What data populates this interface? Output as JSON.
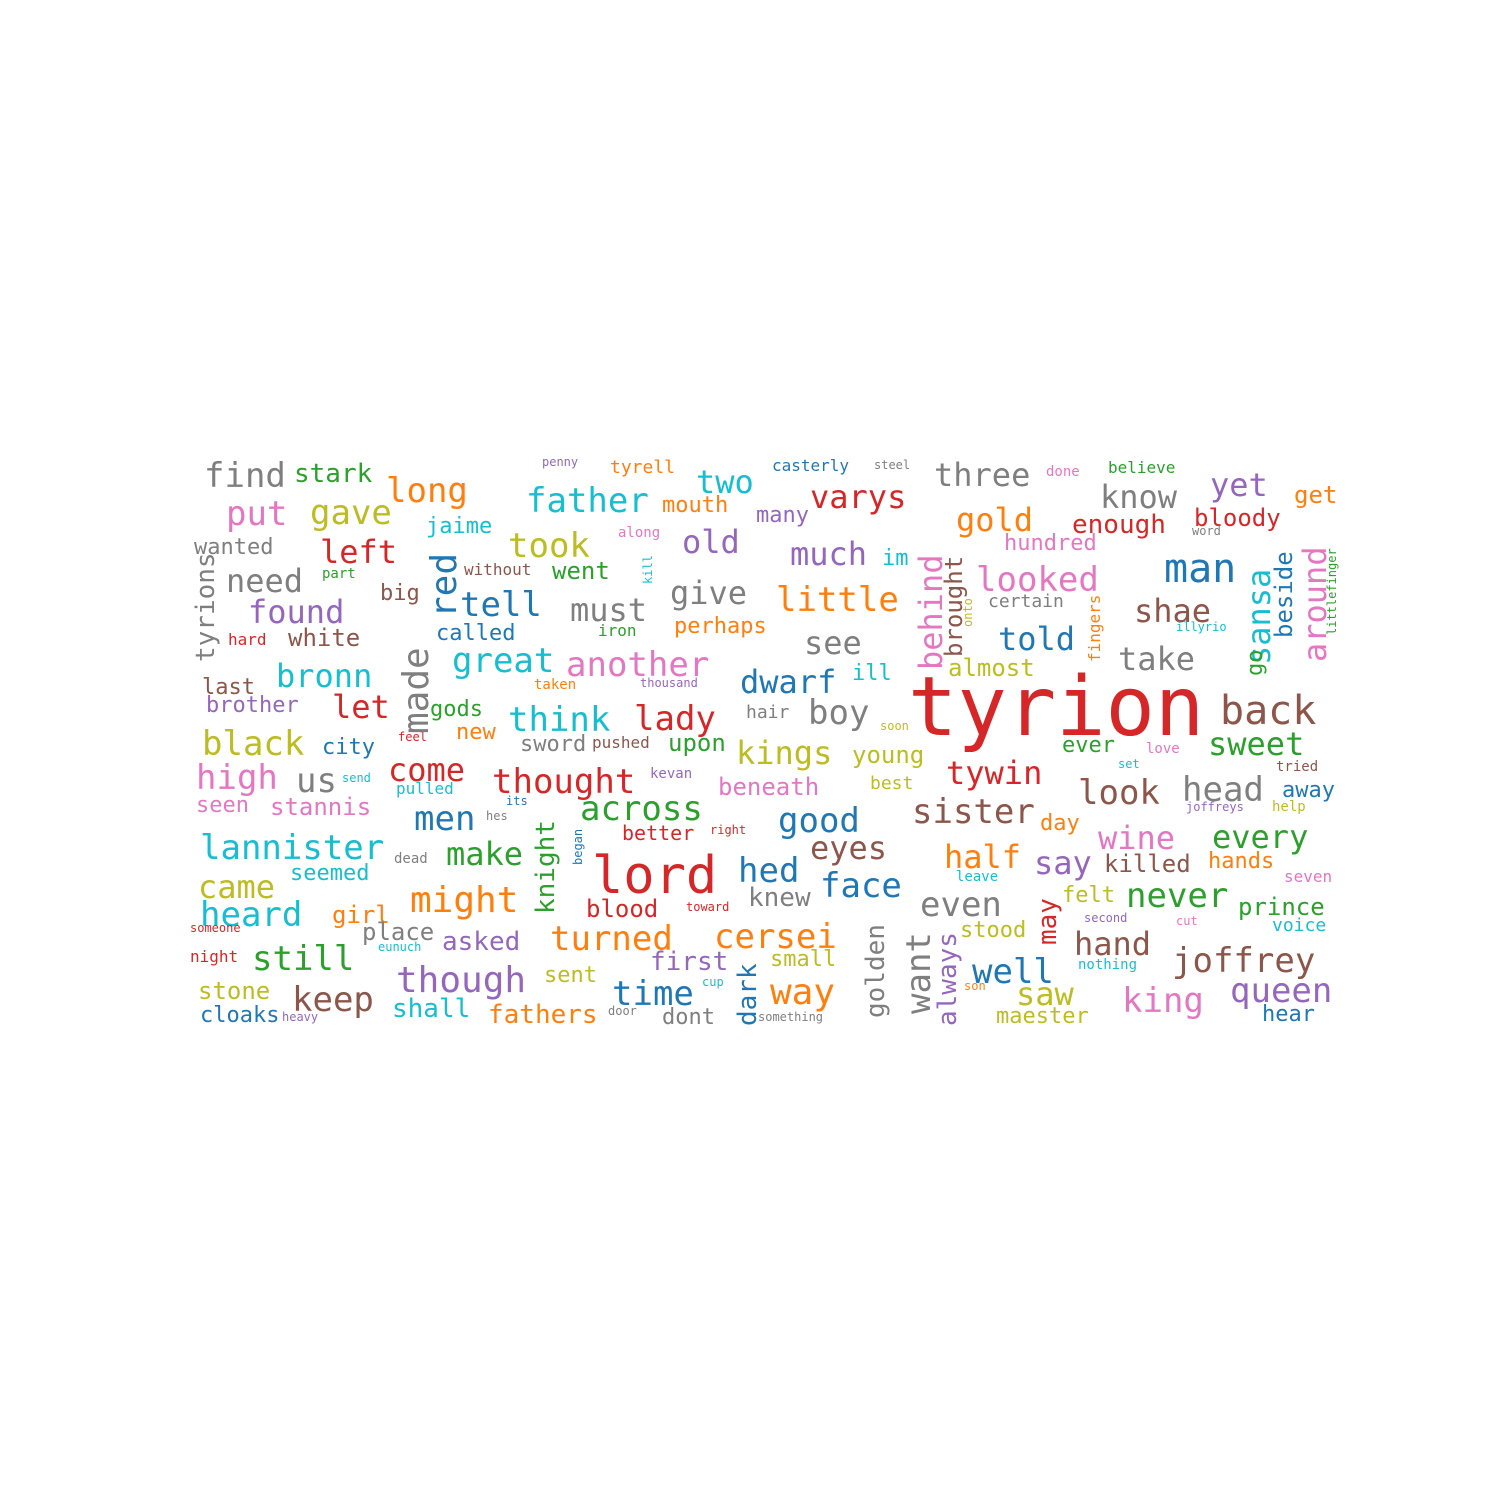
{
  "palette": [
    "#d62728",
    "#1f77b4",
    "#2ca02c",
    "#ff7f0e",
    "#9467bd",
    "#8c564b",
    "#e377c2",
    "#7f7f7f",
    "#bcbd22",
    "#17becf"
  ],
  "words": [
    {
      "text": "tyrion",
      "color": "#d62728"
    },
    {
      "text": "lord",
      "color": "#d62728"
    },
    {
      "text": "back",
      "color": "#8c564b"
    },
    {
      "text": "sweet",
      "color": "#2ca02c"
    },
    {
      "text": "joffrey",
      "color": "#8c564b"
    },
    {
      "text": "queen",
      "color": "#9467bd"
    },
    {
      "text": "king",
      "color": "#e377c2"
    },
    {
      "text": "hand",
      "color": "#8c564b"
    },
    {
      "text": "never",
      "color": "#2ca02c"
    },
    {
      "text": "every",
      "color": "#2ca02c"
    },
    {
      "text": "wine",
      "color": "#e377c2"
    },
    {
      "text": "head",
      "color": "#7f7f7f"
    },
    {
      "text": "look",
      "color": "#8c564b"
    },
    {
      "text": "take",
      "color": "#7f7f7f"
    },
    {
      "text": "shae",
      "color": "#8c564b"
    },
    {
      "text": "man",
      "color": "#1f77b4"
    },
    {
      "text": "know",
      "color": "#7f7f7f"
    },
    {
      "text": "yet",
      "color": "#9467bd"
    },
    {
      "text": "three",
      "color": "#7f7f7f"
    },
    {
      "text": "gold",
      "color": "#ff7f0e"
    },
    {
      "text": "varys",
      "color": "#d62728"
    },
    {
      "text": "two",
      "color": "#17becf"
    },
    {
      "text": "father",
      "color": "#17becf"
    },
    {
      "text": "long",
      "color": "#ff7f0e"
    },
    {
      "text": "find",
      "color": "#7f7f7f"
    },
    {
      "text": "stark",
      "color": "#2ca02c"
    },
    {
      "text": "put",
      "color": "#e377c2"
    },
    {
      "text": "gave",
      "color": "#bcbd22"
    },
    {
      "text": "took",
      "color": "#bcbd22"
    },
    {
      "text": "old",
      "color": "#9467bd"
    },
    {
      "text": "much",
      "color": "#9467bd"
    },
    {
      "text": "looked",
      "color": "#e377c2"
    },
    {
      "text": "enough",
      "color": "#d62728"
    },
    {
      "text": "bloody",
      "color": "#d62728"
    },
    {
      "text": "get",
      "color": "#ff7f0e"
    },
    {
      "text": "left",
      "color": "#d62728"
    },
    {
      "text": "need",
      "color": "#7f7f7f"
    },
    {
      "text": "found",
      "color": "#9467bd"
    },
    {
      "text": "tell",
      "color": "#1f77b4"
    },
    {
      "text": "must",
      "color": "#7f7f7f"
    },
    {
      "text": "give",
      "color": "#7f7f7f"
    },
    {
      "text": "little",
      "color": "#ff7f0e"
    },
    {
      "text": "told",
      "color": "#1f77b4"
    },
    {
      "text": "great",
      "color": "#17becf"
    },
    {
      "text": "another",
      "color": "#e377c2"
    },
    {
      "text": "see",
      "color": "#7f7f7f"
    },
    {
      "text": "bronn",
      "color": "#17becf"
    },
    {
      "text": "dwarf",
      "color": "#1f77b4"
    },
    {
      "text": "boy",
      "color": "#7f7f7f"
    },
    {
      "text": "think",
      "color": "#17becf"
    },
    {
      "text": "lady",
      "color": "#d62728"
    },
    {
      "text": "let",
      "color": "#d62728"
    },
    {
      "text": "black",
      "color": "#bcbd22"
    },
    {
      "text": "kings",
      "color": "#bcbd22"
    },
    {
      "text": "high",
      "color": "#e377c2"
    },
    {
      "text": "us",
      "color": "#7f7f7f"
    },
    {
      "text": "come",
      "color": "#d62728"
    },
    {
      "text": "thought",
      "color": "#d62728"
    },
    {
      "text": "tywin",
      "color": "#d62728"
    },
    {
      "text": "across",
      "color": "#2ca02c"
    },
    {
      "text": "good",
      "color": "#1f77b4"
    },
    {
      "text": "sister",
      "color": "#8c564b"
    },
    {
      "text": "men",
      "color": "#1f77b4"
    },
    {
      "text": "lannister",
      "color": "#17becf"
    },
    {
      "text": "make",
      "color": "#2ca02c"
    },
    {
      "text": "eyes",
      "color": "#8c564b"
    },
    {
      "text": "half",
      "color": "#ff7f0e"
    },
    {
      "text": "say",
      "color": "#9467bd"
    },
    {
      "text": "hed",
      "color": "#1f77b4"
    },
    {
      "text": "face",
      "color": "#1f77b4"
    },
    {
      "text": "might",
      "color": "#ff7f0e"
    },
    {
      "text": "came",
      "color": "#bcbd22"
    },
    {
      "text": "heard",
      "color": "#17becf"
    },
    {
      "text": "even",
      "color": "#7f7f7f"
    },
    {
      "text": "turned",
      "color": "#ff7f0e"
    },
    {
      "text": "cersei",
      "color": "#ff7f0e"
    },
    {
      "text": "still",
      "color": "#2ca02c"
    },
    {
      "text": "though",
      "color": "#9467bd"
    },
    {
      "text": "keep",
      "color": "#8c564b"
    },
    {
      "text": "time",
      "color": "#1f77b4"
    },
    {
      "text": "way",
      "color": "#ff7f0e"
    },
    {
      "text": "well",
      "color": "#1f77b4"
    },
    {
      "text": "saw",
      "color": "#bcbd22"
    },
    {
      "text": "asked",
      "color": "#9467bd"
    },
    {
      "text": "first",
      "color": "#9467bd"
    },
    {
      "text": "knew",
      "color": "#7f7f7f"
    },
    {
      "text": "fathers",
      "color": "#ff7f0e"
    },
    {
      "text": "shall",
      "color": "#17becf"
    },
    {
      "text": "stone",
      "color": "#bcbd22"
    },
    {
      "text": "cloaks",
      "color": "#1f77b4"
    },
    {
      "text": "blood",
      "color": "#d62728"
    },
    {
      "text": "girl",
      "color": "#ff7f0e"
    },
    {
      "text": "place",
      "color": "#7f7f7f"
    },
    {
      "text": "young",
      "color": "#bcbd22"
    },
    {
      "text": "upon",
      "color": "#2ca02c"
    },
    {
      "text": "beneath",
      "color": "#e377c2"
    },
    {
      "text": "new",
      "color": "#ff7f0e"
    },
    {
      "text": "city",
      "color": "#1f77b4"
    },
    {
      "text": "brother",
      "color": "#9467bd"
    },
    {
      "text": "last",
      "color": "#8c564b"
    },
    {
      "text": "white",
      "color": "#8c564b"
    },
    {
      "text": "wanted",
      "color": "#7f7f7f"
    },
    {
      "text": "big",
      "color": "#8c564b"
    },
    {
      "text": "went",
      "color": "#2ca02c"
    },
    {
      "text": "called",
      "color": "#1f77b4"
    },
    {
      "text": "perhaps",
      "color": "#ff7f0e"
    },
    {
      "text": "ill",
      "color": "#17becf"
    },
    {
      "text": "almost",
      "color": "#bcbd22"
    },
    {
      "text": "jaime",
      "color": "#17becf"
    },
    {
      "text": "mouth",
      "color": "#ff7f0e"
    },
    {
      "text": "many",
      "color": "#9467bd"
    },
    {
      "text": "im",
      "color": "#17becf"
    },
    {
      "text": "hundred",
      "color": "#e377c2"
    },
    {
      "text": "certain",
      "color": "#7f7f7f"
    },
    {
      "text": "seen",
      "color": "#e377c2"
    },
    {
      "text": "stannis",
      "color": "#e377c2"
    },
    {
      "text": "seemed",
      "color": "#17becf"
    },
    {
      "text": "better",
      "color": "#d62728"
    },
    {
      "text": "sword",
      "color": "#7f7f7f"
    },
    {
      "text": "pushed",
      "color": "#8c564b"
    },
    {
      "text": "gods",
      "color": "#2ca02c"
    },
    {
      "text": "hair",
      "color": "#7f7f7f"
    },
    {
      "text": "best",
      "color": "#bcbd22"
    },
    {
      "text": "ever",
      "color": "#2ca02c"
    },
    {
      "text": "away",
      "color": "#1f77b4"
    },
    {
      "text": "killed",
      "color": "#8c564b"
    },
    {
      "text": "hands",
      "color": "#ff7f0e"
    },
    {
      "text": "felt",
      "color": "#bcbd22"
    },
    {
      "text": "prince",
      "color": "#2ca02c"
    },
    {
      "text": "voice",
      "color": "#17becf"
    },
    {
      "text": "hear",
      "color": "#1f77b4"
    },
    {
      "text": "small",
      "color": "#bcbd22"
    },
    {
      "text": "sent",
      "color": "#bcbd22"
    },
    {
      "text": "dont",
      "color": "#7f7f7f"
    },
    {
      "text": "stood",
      "color": "#bcbd22"
    },
    {
      "text": "maester",
      "color": "#bcbd22"
    },
    {
      "text": "nothing",
      "color": "#17becf"
    },
    {
      "text": "day",
      "color": "#ff7f0e"
    },
    {
      "text": "tried",
      "color": "#8c564b"
    },
    {
      "text": "help",
      "color": "#bcbd22"
    },
    {
      "text": "seven",
      "color": "#e377c2"
    },
    {
      "text": "iron",
      "color": "#2ca02c"
    },
    {
      "text": "without",
      "color": "#8c564b"
    },
    {
      "text": "part",
      "color": "#2ca02c"
    },
    {
      "text": "hard",
      "color": "#d62728"
    },
    {
      "text": "pulled",
      "color": "#17becf"
    },
    {
      "text": "dead",
      "color": "#7f7f7f"
    },
    {
      "text": "taken",
      "color": "#ff7f0e"
    },
    {
      "text": "thousand",
      "color": "#9467bd"
    },
    {
      "text": "kevan",
      "color": "#9467bd"
    },
    {
      "text": "right",
      "color": "#d62728"
    },
    {
      "text": "toward",
      "color": "#d62728"
    },
    {
      "text": "along",
      "color": "#e377c2"
    },
    {
      "text": "penny",
      "color": "#9467bd"
    },
    {
      "text": "tyrell",
      "color": "#ff7f0e"
    },
    {
      "text": "casterly",
      "color": "#1f77b4"
    },
    {
      "text": "steel",
      "color": "#7f7f7f"
    },
    {
      "text": "done",
      "color": "#e377c2"
    },
    {
      "text": "believe",
      "color": "#2ca02c"
    },
    {
      "text": "word",
      "color": "#7f7f7f"
    },
    {
      "text": "illyrio",
      "color": "#17becf"
    },
    {
      "text": "love",
      "color": "#e377c2"
    },
    {
      "text": "set",
      "color": "#17becf"
    },
    {
      "text": "joffreys",
      "color": "#9467bd"
    },
    {
      "text": "second",
      "color": "#9467bd"
    },
    {
      "text": "cut",
      "color": "#e377c2"
    },
    {
      "text": "leave",
      "color": "#17becf"
    },
    {
      "text": "son",
      "color": "#ff7f0e"
    },
    {
      "text": "soon",
      "color": "#bcbd22"
    },
    {
      "text": "feel",
      "color": "#d62728"
    },
    {
      "text": "send",
      "color": "#17becf"
    },
    {
      "text": "its",
      "color": "#1f77b4"
    },
    {
      "text": "hes",
      "color": "#7f7f7f"
    },
    {
      "text": "someone",
      "color": "#d62728"
    },
    {
      "text": "night",
      "color": "#d62728"
    },
    {
      "text": "eunuch",
      "color": "#17becf"
    },
    {
      "text": "heavy",
      "color": "#9467bd"
    },
    {
      "text": "door",
      "color": "#7f7f7f"
    },
    {
      "text": "something",
      "color": "#7f7f7f"
    },
    {
      "text": "cup",
      "color": "#17becf"
    },
    {
      "text": "tyrions",
      "color": "#7f7f7f"
    },
    {
      "text": "red",
      "color": "#1f77b4"
    },
    {
      "text": "made",
      "color": "#7f7f7f"
    },
    {
      "text": "behind",
      "color": "#e377c2"
    },
    {
      "text": "brought",
      "color": "#8c564b"
    },
    {
      "text": "sansa",
      "color": "#17becf"
    },
    {
      "text": "around",
      "color": "#e377c2"
    },
    {
      "text": "beside",
      "color": "#1f77b4"
    },
    {
      "text": "go",
      "color": "#2ca02c"
    },
    {
      "text": "littlefinger",
      "color": "#2ca02c"
    },
    {
      "text": "fingers",
      "color": "#ff7f0e"
    },
    {
      "text": "onto",
      "color": "#bcbd22"
    },
    {
      "text": "kill",
      "color": "#17becf"
    },
    {
      "text": "knight",
      "color": "#2ca02c"
    },
    {
      "text": "began",
      "color": "#1f77b4"
    },
    {
      "text": "golden",
      "color": "#7f7f7f"
    },
    {
      "text": "want",
      "color": "#7f7f7f"
    },
    {
      "text": "always",
      "color": "#9467bd"
    },
    {
      "text": "may",
      "color": "#d62728"
    },
    {
      "text": "dark",
      "color": "#1f77b4"
    }
  ]
}
